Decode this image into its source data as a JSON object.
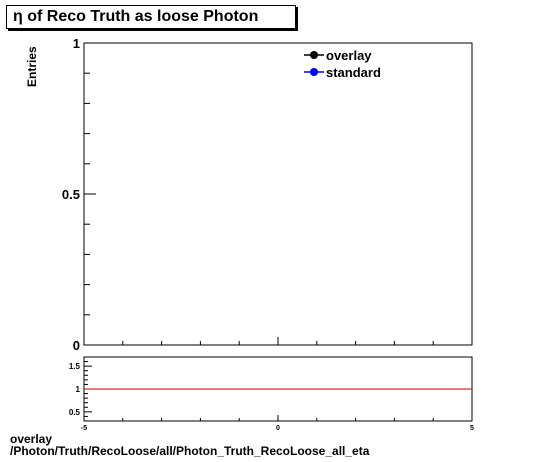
{
  "chart_data": [
    {
      "type": "line",
      "title": "η of Reco Truth as loose Photon",
      "ylabel": "Entries",
      "xlabel": "",
      "xlim": [
        -5,
        5
      ],
      "ylim": [
        0,
        1
      ],
      "y_tick_labels": [
        "0",
        "0.5",
        "1"
      ],
      "grid": false,
      "legend_position": "top-right",
      "series": [
        {
          "name": "overlay",
          "color": "#000000",
          "x": [],
          "y": []
        },
        {
          "name": "standard",
          "color": "#0000ff",
          "x": [],
          "y": []
        }
      ]
    },
    {
      "type": "line",
      "title": "",
      "xlim": [
        -5,
        5
      ],
      "ylim": [
        0.3,
        1.7
      ],
      "x_tick_labels": [
        "-5",
        "0",
        "5"
      ],
      "y_tick_labels": [
        "0.5",
        "1",
        "1.5"
      ],
      "reference_line": {
        "y": 1,
        "color": "#cc0000"
      },
      "series": []
    }
  ],
  "footer": {
    "line1": "overlay",
    "line2": "/Photon/Truth/RecoLoose/all/Photon_Truth_RecoLoose_all_eta"
  }
}
